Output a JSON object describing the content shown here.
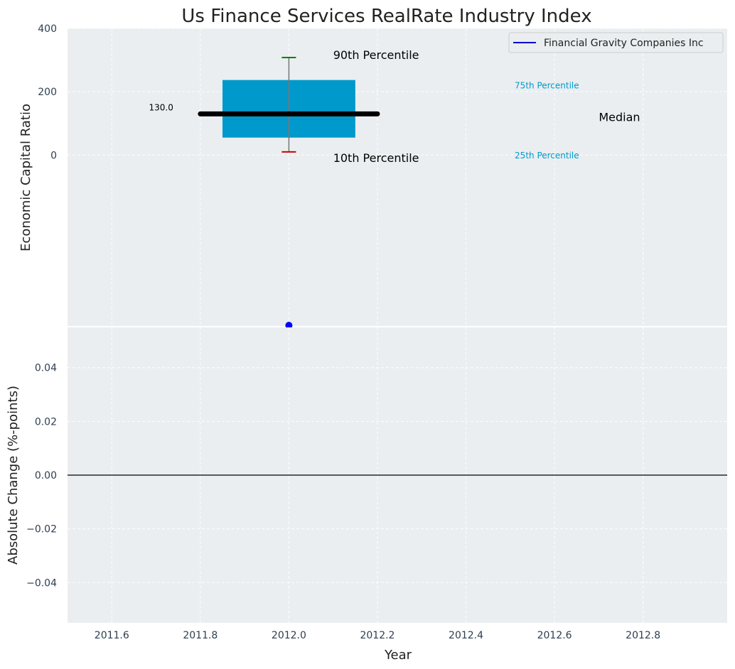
{
  "title": "Us Finance Services RealRate Industry Index",
  "colors": {
    "plot_bg": "#eaeef0",
    "grid": "#ffffff",
    "box_fill": "#0099cc",
    "median": "#000000",
    "whisker_top": "#008000",
    "whisker_bottom": "#cc0000",
    "whisker_line": "#777777",
    "company_point": "#0000ff",
    "legend_line": "#0000cc",
    "quartile_text": "#0099cc"
  },
  "chart_data": [
    {
      "type": "box",
      "ylabel": "Economic Capital Ratio",
      "ylim": [
        -540,
        400
      ],
      "yticks": [
        0,
        200,
        400
      ],
      "xlim": [
        2011.5,
        2012.99
      ],
      "grid": true,
      "legend": {
        "placement": "top-right",
        "entries": [
          "Financial Gravity Companies Inc"
        ]
      },
      "box": {
        "x": 2012.0,
        "p10": 10,
        "p25": 55,
        "median": 130,
        "p75": 237,
        "p90": 308,
        "box_x_range": [
          2011.85,
          2012.15
        ],
        "median_x_range": [
          2011.8,
          2012.2
        ]
      },
      "median_value_label": "130.0",
      "company": {
        "name": "Financial Gravity Companies Inc",
        "x": 2012.0,
        "y": -538
      },
      "annotations": {
        "p90": "90th Percentile",
        "p75": "75th Percentile",
        "median": "Median",
        "p25": "25th Percentile",
        "p10": "10th Percentile"
      }
    },
    {
      "type": "line",
      "ylabel": "Absolute Change (%-points)",
      "xlabel": "Year",
      "ylim": [
        -0.055,
        0.055
      ],
      "yticks": [
        "0.04",
        "0.02",
        "0.00",
        "−0.02",
        "−0.04"
      ],
      "ytick_values": [
        0.04,
        0.02,
        0.0,
        -0.02,
        -0.04
      ],
      "xticks": [
        "2011.6",
        "2011.8",
        "2012.0",
        "2012.2",
        "2012.4",
        "2012.6",
        "2012.8"
      ],
      "xtick_values": [
        2011.6,
        2011.8,
        2012.0,
        2012.2,
        2012.4,
        2012.6,
        2012.8
      ],
      "xlim": [
        2011.5,
        2012.99
      ],
      "zero_line": 0.0,
      "grid": true
    }
  ]
}
